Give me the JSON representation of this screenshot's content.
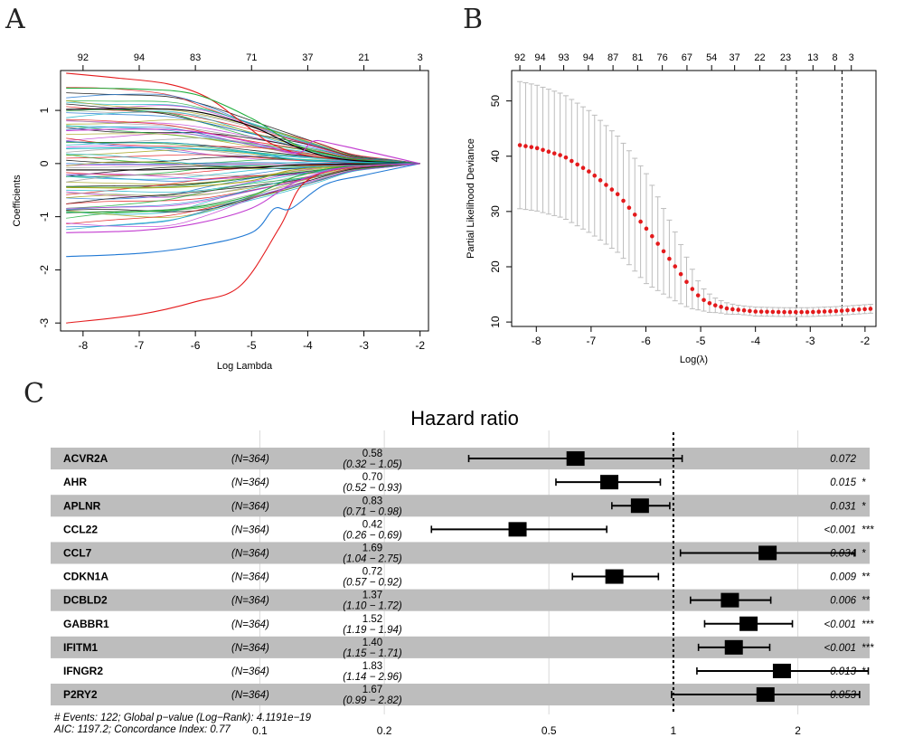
{
  "panels": {
    "a": "A",
    "b": "B",
    "c": "C"
  },
  "chart_data": [
    {
      "type": "line",
      "panel": "A",
      "title": "",
      "xlabel": "Log Lambda",
      "ylabel": "Coefficients",
      "xlim": [
        -8.4,
        -1.85
      ],
      "ylim": [
        -3.15,
        1.75
      ],
      "x_ticks": [
        -8,
        -7,
        -6,
        -5,
        -4,
        -3,
        -2
      ],
      "y_ticks": [
        -3,
        -2,
        -1,
        0,
        1
      ],
      "top_axis": [
        {
          "x": -8,
          "label": "92"
        },
        {
          "x": -7,
          "label": "94"
        },
        {
          "x": -6,
          "label": "83"
        },
        {
          "x": -5,
          "label": "71"
        },
        {
          "x": -4,
          "label": "37"
        },
        {
          "x": -3,
          "label": "21"
        },
        {
          "x": -2,
          "label": "3"
        }
      ],
      "grid": false,
      "colors": [
        "#000000",
        "#e41a1c",
        "#1fae3c",
        "#1f78d4",
        "#19b5c8",
        "#c33dd1",
        "#a7a51c",
        "#9e9e9e"
      ],
      "series": [
        {
          "color": "#e41a1c",
          "points": [
            [
              -8.3,
              -3.0
            ],
            [
              -7,
              -2.84
            ],
            [
              -6,
              -2.6
            ],
            [
              -5.2,
              -2.3
            ],
            [
              -4.5,
              -1.2
            ],
            [
              -4.05,
              -0.35
            ],
            [
              -3.2,
              -0.06
            ],
            [
              -2.0,
              0
            ]
          ]
        },
        {
          "color": "#1f78d4",
          "points": [
            [
              -8.3,
              -1.75
            ],
            [
              -7,
              -1.69
            ],
            [
              -6,
              -1.56
            ],
            [
              -5.0,
              -1.3
            ],
            [
              -4.6,
              -0.85
            ],
            [
              -4.3,
              -0.85
            ],
            [
              -3.7,
              -0.4
            ],
            [
              -3.0,
              -0.22
            ],
            [
              -2.0,
              0
            ]
          ]
        },
        {
          "color": "#e41a1c",
          "points": [
            [
              -8.3,
              1.7
            ],
            [
              -7.5,
              1.62
            ],
            [
              -6.5,
              1.5
            ],
            [
              -5.8,
              1.25
            ],
            [
              -5.2,
              0.8
            ],
            [
              -4.6,
              0.35
            ],
            [
              -3.8,
              0.12
            ],
            [
              -2.0,
              0
            ]
          ]
        },
        {
          "color": "#1fae3c",
          "points": [
            [
              -8.3,
              1.42
            ],
            [
              -7,
              1.4
            ],
            [
              -6,
              1.3
            ],
            [
              -5.0,
              0.85
            ],
            [
              -4.2,
              0.35
            ],
            [
              -3.3,
              0.1
            ],
            [
              -2.0,
              0
            ]
          ]
        },
        {
          "color": "#000000",
          "points": [
            [
              -8.3,
              1.02
            ],
            [
              -7,
              1.03
            ],
            [
              -6,
              0.98
            ],
            [
              -5.0,
              0.7
            ],
            [
              -4.1,
              0.27
            ],
            [
              -3.3,
              0.07
            ],
            [
              -2.0,
              0
            ]
          ]
        },
        {
          "color": "#c33dd1",
          "points": [
            [
              -8.3,
              0.62
            ],
            [
              -7,
              0.65
            ],
            [
              -6,
              0.6
            ],
            [
              -5.0,
              0.4
            ],
            [
              -4.2,
              0.2
            ],
            [
              -3.9,
              0.42
            ],
            [
              -3.5,
              0.36
            ],
            [
              -2.0,
              0
            ]
          ]
        },
        {
          "color": "#19b5c8",
          "points": [
            [
              -8.3,
              0.28
            ],
            [
              -7,
              0.3
            ],
            [
              -6,
              0.28
            ],
            [
              -5.0,
              0.2
            ],
            [
              -4.0,
              0.06
            ],
            [
              -2.0,
              0
            ]
          ]
        },
        {
          "color": "#000000",
          "points": [
            [
              -8.3,
              -0.12
            ],
            [
              -7,
              -0.12
            ],
            [
              -6,
              -0.1
            ],
            [
              -5.0,
              -0.08
            ],
            [
              -4.0,
              -0.02
            ],
            [
              -2.0,
              0
            ]
          ]
        },
        {
          "color": "#a7a51c",
          "points": [
            [
              -8.3,
              -0.45
            ],
            [
              -7,
              -0.46
            ],
            [
              -6,
              -0.43
            ],
            [
              -5.0,
              -0.32
            ],
            [
              -4.1,
              -0.1
            ],
            [
              -2.0,
              0
            ]
          ]
        },
        {
          "color": "#1fae3c",
          "points": [
            [
              -8.3,
              -0.92
            ],
            [
              -7,
              -0.9
            ],
            [
              -6,
              -0.82
            ],
            [
              -5.0,
              -0.6
            ],
            [
              -4.2,
              -0.24
            ],
            [
              -3.3,
              -0.05
            ],
            [
              -2.0,
              0
            ]
          ]
        },
        {
          "color": "#c33dd1",
          "points": [
            [
              -8.3,
              -1.3
            ],
            [
              -7,
              -1.26
            ],
            [
              -6,
              -1.13
            ],
            [
              -5.0,
              -0.84
            ],
            [
              -4.2,
              -0.34
            ],
            [
              -3.3,
              -0.07
            ],
            [
              -2.0,
              0
            ]
          ]
        }
      ]
    },
    {
      "type": "scatter",
      "panel": "B",
      "title": "",
      "xlabel": "Log(λ)",
      "ylabel": "Partial Likelihood Deviance",
      "xlim": [
        -8.45,
        -1.8
      ],
      "ylim": [
        9.2,
        55.5
      ],
      "x_ticks": [
        -8,
        -7,
        -6,
        -5,
        -4,
        -3,
        -2
      ],
      "y_ticks": [
        10,
        20,
        30,
        40,
        50
      ],
      "top_axis": [
        {
          "x": -8.3,
          "label": "92"
        },
        {
          "x": -7.93,
          "label": "94"
        },
        {
          "x": -7.5,
          "label": "93"
        },
        {
          "x": -7.05,
          "label": "94"
        },
        {
          "x": -6.6,
          "label": "87"
        },
        {
          "x": -6.15,
          "label": "81"
        },
        {
          "x": -5.7,
          "label": "76"
        },
        {
          "x": -5.25,
          "label": "67"
        },
        {
          "x": -4.8,
          "label": "54"
        },
        {
          "x": -4.38,
          "label": "37"
        },
        {
          "x": -3.92,
          "label": "22"
        },
        {
          "x": -3.45,
          "label": "23"
        },
        {
          "x": -2.95,
          "label": "13"
        },
        {
          "x": -2.55,
          "label": "8"
        },
        {
          "x": -2.25,
          "label": "3"
        }
      ],
      "vlines": [
        -3.25,
        -2.42
      ],
      "grid": false,
      "point_color": "#e41a1c",
      "errorbar_color": "#bdbdbd",
      "curve": [
        [
          -8.3,
          42.0
        ],
        [
          -8.0,
          41.5
        ],
        [
          -7.5,
          40.0
        ],
        [
          -7.0,
          37.0
        ],
        [
          -6.5,
          33.0
        ],
        [
          -6.0,
          27.0
        ],
        [
          -5.5,
          20.5
        ],
        [
          -5.2,
          16.5
        ],
        [
          -5.0,
          14.3
        ],
        [
          -4.8,
          13.2
        ],
        [
          -4.5,
          12.4
        ],
        [
          -4.0,
          11.9
        ],
        [
          -3.5,
          11.8
        ],
        [
          -3.0,
          11.8
        ],
        [
          -2.5,
          12.0
        ],
        [
          -1.9,
          12.4
        ]
      ],
      "error_half_width": [
        [
          -8.3,
          11.5
        ],
        [
          -7.0,
          11.0
        ],
        [
          -6.0,
          10.0
        ],
        [
          -5.5,
          6.5
        ],
        [
          -5.2,
          4.0
        ],
        [
          -5.0,
          2.2
        ],
        [
          -4.7,
          1.2
        ],
        [
          -4.3,
          0.8
        ],
        [
          -1.9,
          0.8
        ]
      ]
    },
    {
      "type": "forest",
      "panel": "C",
      "title": "Hazard ratio",
      "x_scale": "log",
      "xlim": [
        0.082,
        4.2
      ],
      "x_ticks": [
        {
          "value": 0.1,
          "label": "0.1"
        },
        {
          "value": 0.2,
          "label": "0.2"
        },
        {
          "value": 0.5,
          "label": "0.5"
        },
        {
          "value": 1,
          "label": "1"
        },
        {
          "value": 2,
          "label": "2"
        }
      ],
      "reference_line": 1,
      "colors": {
        "stripe": "#bdbdbd",
        "box": "#000000"
      },
      "rows": [
        {
          "gene": "ACVR2A",
          "n": "(N=364)",
          "hr": 0.58,
          "hr_label": "0.58",
          "lo": 0.32,
          "hi": 1.05,
          "ci_label": "(0.32 − 1.05)",
          "p_label": "0.072",
          "stars": ""
        },
        {
          "gene": "AHR",
          "n": "(N=364)",
          "hr": 0.7,
          "hr_label": "0.70",
          "lo": 0.52,
          "hi": 0.93,
          "ci_label": "(0.52 − 0.93)",
          "p_label": "0.015",
          "stars": "*"
        },
        {
          "gene": "APLNR",
          "n": "(N=364)",
          "hr": 0.83,
          "hr_label": "0.83",
          "lo": 0.71,
          "hi": 0.98,
          "ci_label": "(0.71 − 0.98)",
          "p_label": "0.031",
          "stars": "*"
        },
        {
          "gene": "CCL22",
          "n": "(N=364)",
          "hr": 0.42,
          "hr_label": "0.42",
          "lo": 0.26,
          "hi": 0.69,
          "ci_label": "(0.26 − 0.69)",
          "p_label": "<0.001",
          "stars": "***"
        },
        {
          "gene": "CCL7",
          "n": "(N=364)",
          "hr": 1.69,
          "hr_label": "1.69",
          "lo": 1.04,
          "hi": 2.75,
          "ci_label": "(1.04 − 2.75)",
          "p_label": "0.034",
          "stars": "*"
        },
        {
          "gene": "CDKN1A",
          "n": "(N=364)",
          "hr": 0.72,
          "hr_label": "0.72",
          "lo": 0.57,
          "hi": 0.92,
          "ci_label": "(0.57 − 0.92)",
          "p_label": "0.009",
          "stars": "**"
        },
        {
          "gene": "DCBLD2",
          "n": "(N=364)",
          "hr": 1.37,
          "hr_label": "1.37",
          "lo": 1.1,
          "hi": 1.72,
          "ci_label": "(1.10 − 1.72)",
          "p_label": "0.006",
          "stars": "**"
        },
        {
          "gene": "GABBR1",
          "n": "(N=364)",
          "hr": 1.52,
          "hr_label": "1.52",
          "lo": 1.19,
          "hi": 1.94,
          "ci_label": "(1.19 − 1.94)",
          "p_label": "<0.001",
          "stars": "***"
        },
        {
          "gene": "IFITM1",
          "n": "(N=364)",
          "hr": 1.4,
          "hr_label": "1.40",
          "lo": 1.15,
          "hi": 1.71,
          "ci_label": "(1.15 − 1.71)",
          "p_label": "<0.001",
          "stars": "***"
        },
        {
          "gene": "IFNGR2",
          "n": "(N=364)",
          "hr": 1.83,
          "hr_label": "1.83",
          "lo": 1.14,
          "hi": 2.96,
          "ci_label": "(1.14 − 2.96)",
          "p_label": "0.013",
          "stars": "*"
        },
        {
          "gene": "P2RY2",
          "n": "(N=364)",
          "hr": 1.67,
          "hr_label": "1.67",
          "lo": 0.99,
          "hi": 2.82,
          "ci_label": "(0.99 − 2.82)",
          "p_label": "0.053",
          "stars": ""
        }
      ],
      "footer": [
        "# Events: 122; Global p−value (Log−Rank): 4.1191e−19",
        "AIC: 1197.2; Concordance Index: 0.77"
      ]
    }
  ]
}
